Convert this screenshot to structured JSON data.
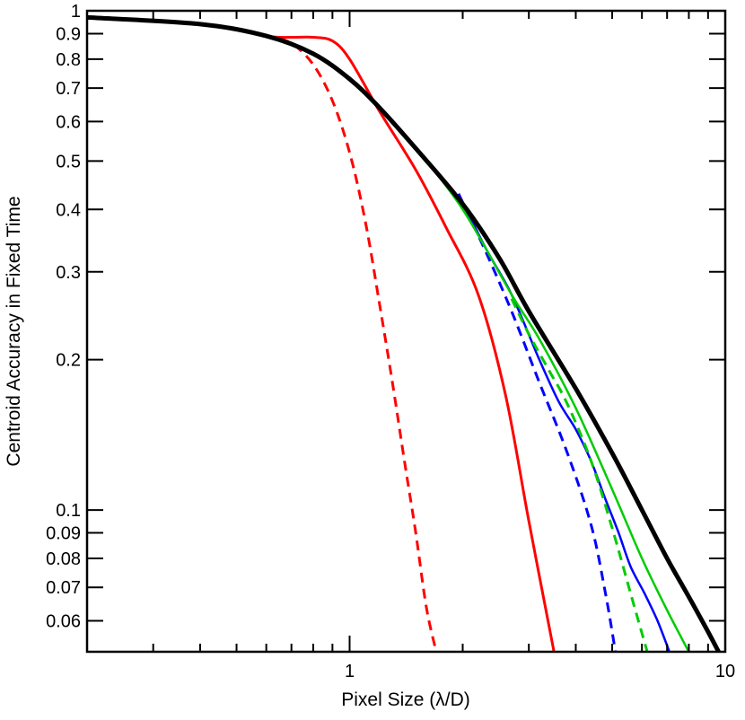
{
  "chart_data": {
    "type": "line",
    "title": "",
    "xlabel": "Pixel Size (λ/D)",
    "ylabel": "Centroid Accuracy in Fixed Time",
    "x_scale": "log",
    "y_scale": "log",
    "xlim": [
      0.2,
      10
    ],
    "ylim": [
      0.052,
      1
    ],
    "x_ticks": [
      {
        "value": 1,
        "label": "1"
      },
      {
        "value": 10,
        "label": "10"
      }
    ],
    "y_ticks": [
      {
        "value": 1,
        "label": "1"
      },
      {
        "value": 0.9,
        "label": "0.9"
      },
      {
        "value": 0.8,
        "label": "0.8"
      },
      {
        "value": 0.7,
        "label": "0.7"
      },
      {
        "value": 0.6,
        "label": "0.6"
      },
      {
        "value": 0.5,
        "label": "0.5"
      },
      {
        "value": 0.4,
        "label": "0.4"
      },
      {
        "value": 0.3,
        "label": "0.3"
      },
      {
        "value": 0.2,
        "label": "0.2"
      },
      {
        "value": 0.1,
        "label": "0.1"
      },
      {
        "value": 0.09,
        "label": "0.09"
      },
      {
        "value": 0.08,
        "label": "0.08"
      },
      {
        "value": 0.07,
        "label": "0.07"
      },
      {
        "value": 0.06,
        "label": "0.06"
      }
    ],
    "grid": false,
    "legend": "none",
    "series": [
      {
        "color": "#ff0000",
        "dash": true,
        "width": 3,
        "x": [
          0.2,
          0.4,
          0.6,
          0.7,
          0.8,
          0.9,
          1.0,
          1.1,
          1.2,
          1.3,
          1.4,
          1.5,
          1.6,
          1.7
        ],
        "y": [
          0.97,
          0.94,
          0.89,
          0.86,
          0.78,
          0.66,
          0.52,
          0.38,
          0.26,
          0.18,
          0.125,
          0.09,
          0.064,
          0.052
        ]
      },
      {
        "color": "#ff0000",
        "dash": false,
        "width": 3,
        "x": [
          0.2,
          0.4,
          0.6,
          0.7,
          0.8,
          0.9,
          1.0,
          1.2,
          1.5,
          1.8,
          2.2,
          2.6,
          3.0,
          3.5
        ],
        "y": [
          0.97,
          0.94,
          0.89,
          0.885,
          0.885,
          0.87,
          0.8,
          0.63,
          0.48,
          0.37,
          0.27,
          0.17,
          0.095,
          0.052
        ]
      },
      {
        "color": "#0000ff",
        "dash": true,
        "width": 3,
        "x": [
          1.95,
          2.3,
          2.7,
          3.2,
          3.8,
          4.4,
          4.8,
          5.1
        ],
        "y": [
          0.43,
          0.33,
          0.25,
          0.18,
          0.13,
          0.093,
          0.068,
          0.052
        ]
      },
      {
        "color": "#0000ff",
        "dash": false,
        "width": 2.5,
        "x": [
          1.95,
          2.3,
          2.7,
          3.2,
          3.6,
          4.0,
          4.4,
          4.8,
          5.2,
          5.6,
          6.1,
          6.6,
          7.1
        ],
        "y": [
          0.43,
          0.335,
          0.27,
          0.2,
          0.165,
          0.145,
          0.125,
          0.105,
          0.09,
          0.077,
          0.068,
          0.06,
          0.052
        ]
      },
      {
        "color": "#00cc00",
        "dash": true,
        "width": 3,
        "x": [
          2.7,
          3.0,
          3.4,
          3.8,
          4.4,
          5.0,
          5.6,
          6.2
        ],
        "y": [
          0.265,
          0.225,
          0.19,
          0.163,
          0.125,
          0.092,
          0.068,
          0.052
        ]
      },
      {
        "color": "#00cc00",
        "dash": false,
        "width": 2.5,
        "x": [
          0.2,
          0.4,
          0.6,
          0.8,
          1.0,
          1.2,
          1.5,
          2.0,
          2.7,
          3.2,
          4.0,
          5.0,
          6.0,
          7.0,
          8.0
        ],
        "y": [
          0.97,
          0.94,
          0.89,
          0.82,
          0.73,
          0.64,
          0.53,
          0.4,
          0.27,
          0.22,
          0.16,
          0.11,
          0.08,
          0.063,
          0.052
        ]
      },
      {
        "color": "#000000",
        "dash": false,
        "width": 5,
        "x": [
          0.2,
          0.4,
          0.6,
          0.8,
          1.0,
          1.2,
          1.5,
          2.0,
          2.5,
          3.0,
          4.0,
          5.0,
          6.0,
          7.0,
          8.0,
          9.0,
          9.6
        ],
        "y": [
          0.97,
          0.94,
          0.89,
          0.82,
          0.73,
          0.64,
          0.53,
          0.41,
          0.32,
          0.25,
          0.175,
          0.13,
          0.1,
          0.08,
          0.067,
          0.057,
          0.052
        ]
      }
    ]
  }
}
